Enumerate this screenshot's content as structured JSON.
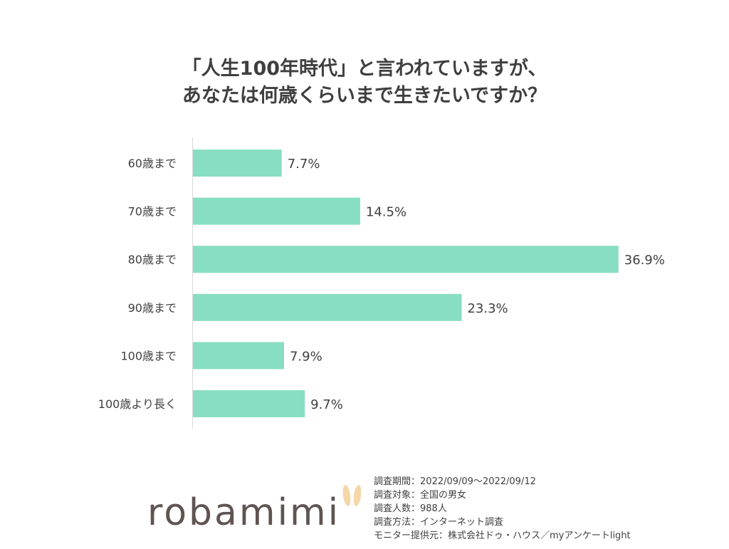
{
  "title_line1": "「人生100年時代」と言われていますが、",
  "title_line2": "あなたは何歳くらいまで生きたいですか？",
  "chart_data": {
    "type": "bar",
    "orientation": "horizontal",
    "categories": [
      "60歳まで",
      "70歳まで",
      "80歳まで",
      "90歳まで",
      "100歳まで",
      "100歳より長く"
    ],
    "values": [
      7.7,
      14.5,
      36.9,
      23.3,
      7.9,
      9.7
    ],
    "value_labels": [
      "7.7%",
      "14.5%",
      "36.9%",
      "23.3%",
      "7.9%",
      "9.7%"
    ],
    "unit": "%",
    "xlim": [
      0,
      37
    ],
    "bar_color": "#88dec3",
    "axis_color": "#d9d9d9",
    "grid": false,
    "legend": "none"
  },
  "logo": {
    "text": "robamimi",
    "ear_color": "#f5d7a8"
  },
  "survey": {
    "period": "調査期間：2022/09/09～2022/09/12",
    "target": "調査対象：全国の男女",
    "count": "調査人数：988人",
    "method": "調査方法：インターネット調査",
    "provider": "モニター提供元：株式会社ドゥ・ハウス／myアンケートlight"
  }
}
